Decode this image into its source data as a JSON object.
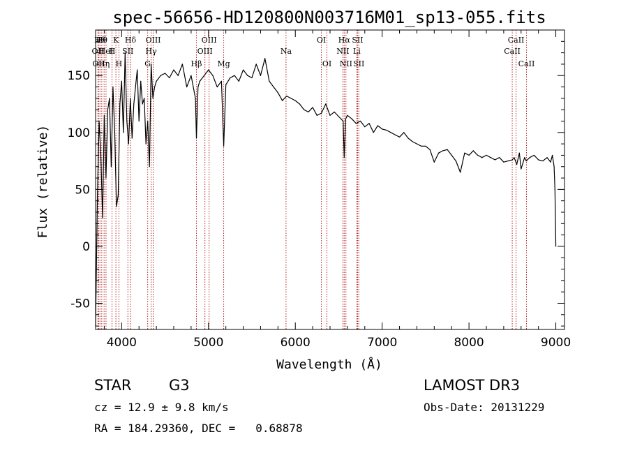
{
  "chart_data": {
    "type": "line",
    "title": "spec-56656-HD120800N003716M01_sp13-055.fits",
    "xlabel": "Wavelength (Å)",
    "ylabel": "Flux (relative)",
    "xlim": [
      3700,
      9100
    ],
    "ylim": [
      -73,
      190
    ],
    "xticks": [
      4000,
      5000,
      6000,
      7000,
      8000,
      9000
    ],
    "yticks": [
      -50,
      0,
      50,
      100,
      150
    ],
    "line_color": "#000000",
    "marker_color": "#b22222",
    "series": [
      {
        "name": "spectrum",
        "x": [
          3700,
          3720,
          3740,
          3760,
          3780,
          3800,
          3820,
          3840,
          3860,
          3880,
          3900,
          3920,
          3940,
          3960,
          3980,
          4000,
          4020,
          4040,
          4060,
          4080,
          4100,
          4120,
          4140,
          4160,
          4180,
          4200,
          4220,
          4240,
          4260,
          4280,
          4300,
          4320,
          4340,
          4360,
          4380,
          4400,
          4450,
          4500,
          4550,
          4600,
          4650,
          4700,
          4750,
          4800,
          4850,
          4861,
          4880,
          4900,
          4950,
          5000,
          5050,
          5100,
          5150,
          5175,
          5200,
          5250,
          5300,
          5350,
          5400,
          5450,
          5500,
          5550,
          5600,
          5650,
          5700,
          5750,
          5800,
          5850,
          5900,
          5950,
          6000,
          6050,
          6100,
          6150,
          6200,
          6250,
          6300,
          6350,
          6400,
          6450,
          6500,
          6550,
          6563,
          6580,
          6600,
          6650,
          6700,
          6750,
          6800,
          6850,
          6900,
          6950,
          7000,
          7050,
          7100,
          7150,
          7200,
          7250,
          7300,
          7350,
          7400,
          7450,
          7500,
          7550,
          7600,
          7650,
          7700,
          7750,
          7800,
          7850,
          7900,
          7950,
          8000,
          8050,
          8100,
          8150,
          8200,
          8250,
          8300,
          8350,
          8400,
          8450,
          8500,
          8520,
          8550,
          8580,
          8600,
          8640,
          8660,
          8700,
          8750,
          8800,
          8850,
          8900,
          8940,
          8960,
          8980,
          8990,
          9000
        ],
        "y": [
          -70,
          40,
          110,
          80,
          25,
          115,
          60,
          120,
          130,
          70,
          140,
          100,
          35,
          45,
          125,
          145,
          100,
          170,
          110,
          90,
          130,
          95,
          125,
          140,
          155,
          110,
          145,
          125,
          130,
          90,
          110,
          70,
          160,
          130,
          140,
          145,
          150,
          152,
          148,
          155,
          150,
          160,
          140,
          150,
          130,
          95,
          140,
          145,
          150,
          155,
          150,
          140,
          145,
          88,
          142,
          148,
          150,
          145,
          155,
          150,
          148,
          160,
          150,
          165,
          145,
          140,
          135,
          128,
          132,
          130,
          128,
          125,
          120,
          118,
          122,
          115,
          117,
          125,
          115,
          118,
          114,
          110,
          78,
          112,
          115,
          112,
          108,
          110,
          105,
          108,
          100,
          106,
          103,
          102,
          100,
          98,
          96,
          100,
          95,
          92,
          90,
          88,
          88,
          85,
          74,
          82,
          84,
          85,
          80,
          75,
          65,
          82,
          80,
          84,
          80,
          78,
          80,
          78,
          76,
          78,
          74,
          75,
          76,
          78,
          72,
          82,
          68,
          78,
          75,
          78,
          80,
          76,
          75,
          78,
          74,
          80,
          70,
          50,
          0
        ]
      }
    ],
    "lines": [
      {
        "wl": 3727,
        "label": "OII",
        "row": 2
      },
      {
        "wl": 3734,
        "label": "OII",
        "row": 3
      },
      {
        "wl": 3750,
        "label": "Hθ",
        "row": 1
      },
      {
        "wl": 3771,
        "label": "Hθ",
        "row": 1
      },
      {
        "wl": 3798,
        "label": "Hη",
        "row": 3
      },
      {
        "wl": 3820,
        "label": "HeI",
        "row": 2
      },
      {
        "wl": 3889,
        "label": "H",
        "row": 2
      },
      {
        "wl": 3934,
        "label": "K",
        "row": 1
      },
      {
        "wl": 3969,
        "label": "H",
        "row": 3
      },
      {
        "wl": 4072,
        "label": "SII",
        "row": 2
      },
      {
        "wl": 4102,
        "label": "Hδ",
        "row": 1
      },
      {
        "wl": 4300,
        "label": "G",
        "row": 3
      },
      {
        "wl": 4340,
        "label": "Hγ",
        "row": 2
      },
      {
        "wl": 4363,
        "label": "OIII",
        "row": 1
      },
      {
        "wl": 4861,
        "label": "Hβ",
        "row": 3
      },
      {
        "wl": 4959,
        "label": "OIII",
        "row": 2
      },
      {
        "wl": 5007,
        "label": "OIII",
        "row": 1
      },
      {
        "wl": 5175,
        "label": "Mg",
        "row": 3
      },
      {
        "wl": 5893,
        "label": "Na",
        "row": 2
      },
      {
        "wl": 6300,
        "label": "OI",
        "row": 1
      },
      {
        "wl": 6364,
        "label": "OI",
        "row": 3
      },
      {
        "wl": 6548,
        "label": "NII",
        "row": 2
      },
      {
        "wl": 6563,
        "label": "Hα",
        "row": 1
      },
      {
        "wl": 6583,
        "label": "NII",
        "row": 3
      },
      {
        "wl": 6708,
        "label": "Li",
        "row": 2
      },
      {
        "wl": 6717,
        "label": "SII",
        "row": 1
      },
      {
        "wl": 6731,
        "label": "SII",
        "row": 3
      },
      {
        "wl": 8498,
        "label": "CaII",
        "row": 2
      },
      {
        "wl": 8542,
        "label": "CaII",
        "row": 1
      },
      {
        "wl": 8662,
        "label": "CaII",
        "row": 3
      }
    ]
  },
  "info": {
    "class": "STAR",
    "subclass": "G3",
    "survey": "LAMOST DR3",
    "cz": "cz = 12.9 ± 9.8 km/s",
    "obs_date": "Obs-Date: 20131229",
    "radec": "RA = 184.29360, DEC =   0.68878"
  }
}
